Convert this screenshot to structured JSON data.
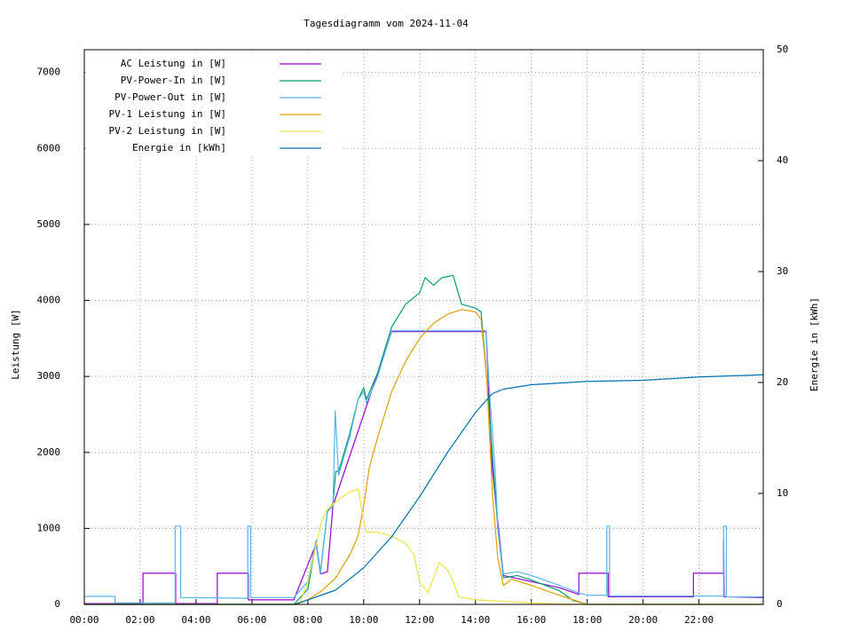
{
  "chart_data": {
    "type": "line",
    "title": "Tagesdiagramm vom 2024-11-04",
    "y_label": "Leistung [W]",
    "y2_label": "Energie in [kWh]",
    "xlim": [
      0,
      24.3
    ],
    "ylim": [
      0,
      7300
    ],
    "y2lim": [
      0,
      50
    ],
    "xticks": [
      {
        "value": 0,
        "label": "00:00"
      },
      {
        "value": 2,
        "label": "02:00"
      },
      {
        "value": 4,
        "label": "04:00"
      },
      {
        "value": 6,
        "label": "06:00"
      },
      {
        "value": 8,
        "label": "08:00"
      },
      {
        "value": 10,
        "label": "10:00"
      },
      {
        "value": 12,
        "label": "12:00"
      },
      {
        "value": 14,
        "label": "14:00"
      },
      {
        "value": 16,
        "label": "16:00"
      },
      {
        "value": 18,
        "label": "18:00"
      },
      {
        "value": 20,
        "label": "20:00"
      },
      {
        "value": 22,
        "label": "22:00"
      }
    ],
    "yticks": [
      0,
      1000,
      2000,
      3000,
      4000,
      5000,
      6000,
      7000
    ],
    "y2ticks": [
      0,
      10,
      20,
      30,
      40,
      50
    ],
    "grid": true,
    "legend": "top-left",
    "series": [
      {
        "name": "AC Leistung in [W]",
        "color": "#9400d3",
        "x": [
          0,
          2.1,
          2.1,
          3.27,
          3.27,
          4.76,
          4.76,
          5.87,
          5.87,
          7.5,
          8.3,
          8.45,
          8.7,
          8.9,
          11,
          14.38,
          14.6,
          15,
          17,
          17.7,
          17.7,
          18.75,
          18.75,
          21.8,
          21.8,
          22.88,
          22.88,
          22.9,
          24.3
        ],
        "values": [
          10,
          10,
          410,
          410,
          10,
          10,
          410,
          410,
          60,
          60,
          800,
          400,
          430,
          1300,
          3590,
          3590,
          1800,
          380,
          220,
          130,
          410,
          410,
          100,
          100,
          410,
          410,
          850,
          100,
          90
        ]
      },
      {
        "name": "PV-Power-In in [W]",
        "color": "#009e73",
        "x": [
          0,
          7.5,
          8.0,
          8.3,
          8.45,
          8.7,
          8.9,
          9.0,
          9.1,
          9.5,
          9.8,
          10.0,
          10.1,
          10.5,
          11.0,
          11.5,
          12.0,
          12.2,
          12.5,
          12.8,
          13.2,
          13.5,
          14.0,
          14.2,
          14.4,
          14.6,
          14.8,
          15.0,
          15.5,
          16.0,
          17.0,
          17.5,
          18.0,
          24.3
        ],
        "values": [
          0,
          0,
          200,
          820,
          420,
          1220,
          1330,
          1750,
          1750,
          2250,
          2700,
          2850,
          2700,
          3050,
          3650,
          3950,
          4100,
          4300,
          4200,
          4300,
          4330,
          3950,
          3900,
          3850,
          3000,
          2000,
          1000,
          350,
          380,
          320,
          180,
          50,
          0,
          0
        ]
      },
      {
        "name": "PV-Power-Out in [W]",
        "color": "#56b4e9",
        "x": [
          0,
          1.1,
          1.1,
          3.25,
          3.25,
          3.45,
          3.45,
          5.85,
          5.85,
          5.95,
          5.95,
          7.5,
          8.0,
          8.3,
          8.45,
          8.7,
          8.9,
          8.98,
          9.1,
          9.5,
          9.8,
          10.0,
          10.1,
          10.5,
          11.0,
          14.38,
          14.5,
          14.7,
          14.8,
          15.0,
          15.5,
          16.0,
          17.0,
          17.7,
          18.0,
          18.7,
          18.7,
          18.8,
          18.8,
          22.88,
          22.88,
          22.98,
          22.98,
          24.3
        ],
        "values": [
          105,
          105,
          20,
          20,
          1030,
          1030,
          90,
          80,
          1030,
          1030,
          90,
          90,
          300,
          850,
          400,
          1215,
          1300,
          2550,
          1700,
          2200,
          2700,
          2800,
          2650,
          3000,
          3600,
          3600,
          2800,
          1800,
          1000,
          400,
          430,
          380,
          250,
          150,
          120,
          120,
          1030,
          1030,
          110,
          110,
          1030,
          1030,
          100,
          100
        ]
      },
      {
        "name": "PV-1 Leistung in [W]",
        "color": "#e69f00",
        "x": [
          0,
          7.6,
          8.0,
          8.5,
          9.0,
          9.5,
          9.8,
          10.0,
          10.2,
          10.5,
          11.0,
          11.5,
          12.0,
          12.5,
          13.0,
          13.5,
          14.0,
          14.2,
          14.4,
          14.6,
          14.8,
          15.0,
          15.3,
          16.0,
          17.0,
          18.0,
          24.3
        ],
        "values": [
          0,
          0,
          60,
          180,
          350,
          650,
          900,
          1300,
          1800,
          2200,
          2800,
          3200,
          3500,
          3700,
          3820,
          3880,
          3850,
          3750,
          3000,
          1500,
          600,
          250,
          330,
          250,
          120,
          0,
          0
        ]
      },
      {
        "name": "PV-2 Leistung in [W]",
        "color": "#f0e442",
        "x": [
          0,
          7.7,
          8.0,
          8.5,
          8.7,
          9.0,
          9.5,
          9.8,
          10.0,
          10.1,
          10.5,
          11.0,
          11.5,
          11.8,
          12.0,
          12.3,
          12.7,
          13.0,
          13.2,
          13.4,
          14.0,
          14.5,
          15.0,
          16.0,
          17.0,
          18.0,
          24.3
        ],
        "values": [
          0,
          0,
          300,
          1100,
          1250,
          1350,
          1480,
          1520,
          1100,
          950,
          950,
          900,
          800,
          650,
          300,
          150,
          550,
          450,
          300,
          100,
          60,
          50,
          40,
          20,
          5,
          0,
          0
        ]
      },
      {
        "name": "Energie in [kWh]",
        "color": "#0072b2",
        "axis": "y2",
        "x": [
          0,
          7.5,
          8.0,
          9.0,
          10.0,
          11.0,
          12.0,
          13.0,
          14.0,
          14.6,
          15.0,
          16.0,
          18.0,
          20.0,
          22.0,
          24.3
        ],
        "values": [
          0,
          0,
          0.4,
          1.3,
          3.3,
          6.1,
          9.7,
          13.7,
          17.3,
          19.0,
          19.4,
          19.8,
          20.1,
          20.2,
          20.5,
          20.7
        ]
      }
    ]
  }
}
